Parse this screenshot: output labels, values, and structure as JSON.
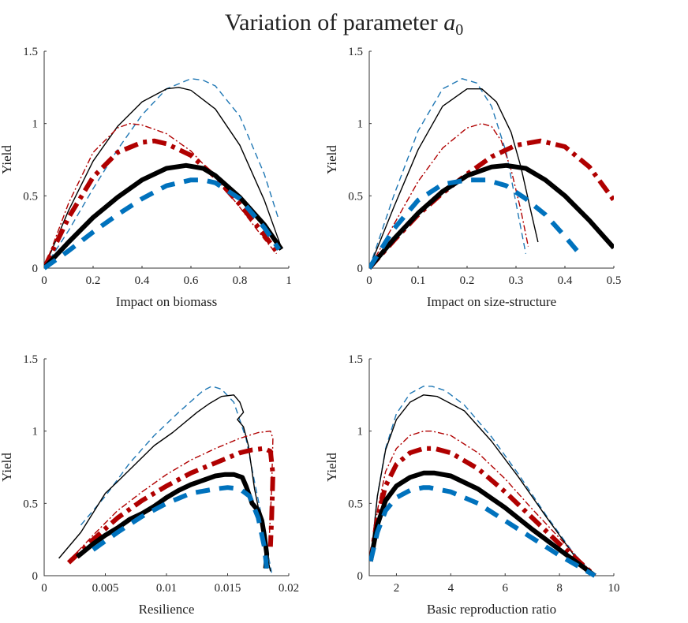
{
  "figure": {
    "title": "Variation of parameter ",
    "title_symbol": "a",
    "title_subscript": "0"
  },
  "chart_data": [
    {
      "type": "line",
      "xlabel": "Impact on biomass",
      "ylabel": "Yield",
      "xlim": [
        0,
        1
      ],
      "ylim": [
        0,
        1.5
      ],
      "xticks": [
        "0",
        "0.2",
        "0.4",
        "0.6",
        "0.8",
        "1"
      ],
      "xtick_values": [
        0,
        0.2,
        0.4,
        0.6,
        0.8,
        1
      ],
      "yticks": [
        "0",
        "0.5",
        "1",
        "1.5"
      ],
      "ytick_values": [
        0,
        0.5,
        1,
        1.5
      ],
      "series": [
        {
          "name": "thin-blue-dashed",
          "color": "#1f77b4",
          "style": "dashed",
          "weight": "thin",
          "x": [
            0,
            0.1,
            0.2,
            0.3,
            0.4,
            0.5,
            0.6,
            0.65,
            0.7,
            0.8,
            0.9,
            0.96
          ],
          "y": [
            0,
            0.26,
            0.55,
            0.82,
            1.06,
            1.24,
            1.31,
            1.3,
            1.26,
            1.05,
            0.65,
            0.33
          ]
        },
        {
          "name": "thin-black-solid",
          "color": "#000000",
          "style": "solid",
          "weight": "thin",
          "x": [
            0,
            0.1,
            0.2,
            0.3,
            0.4,
            0.5,
            0.55,
            0.6,
            0.7,
            0.8,
            0.9,
            0.97
          ],
          "y": [
            0,
            0.4,
            0.74,
            0.98,
            1.15,
            1.24,
            1.25,
            1.23,
            1.1,
            0.85,
            0.47,
            0.14
          ]
        },
        {
          "name": "thin-red-dashdot",
          "color": "#b00000",
          "style": "dashdot",
          "weight": "thin",
          "x": [
            0,
            0.1,
            0.2,
            0.3,
            0.35,
            0.4,
            0.5,
            0.6,
            0.7,
            0.8,
            0.9,
            0.95
          ],
          "y": [
            0,
            0.45,
            0.8,
            0.97,
            1.0,
            0.99,
            0.93,
            0.81,
            0.63,
            0.42,
            0.2,
            0.1
          ]
        },
        {
          "name": "thick-red-dashdot",
          "color": "#b00000",
          "style": "dashdot",
          "weight": "thick",
          "x": [
            0,
            0.1,
            0.2,
            0.3,
            0.4,
            0.45,
            0.5,
            0.6,
            0.7,
            0.8,
            0.9,
            0.96
          ],
          "y": [
            0,
            0.35,
            0.63,
            0.8,
            0.87,
            0.88,
            0.86,
            0.78,
            0.63,
            0.44,
            0.23,
            0.09
          ]
        },
        {
          "name": "thick-black-solid",
          "color": "#000000",
          "style": "solid",
          "weight": "thick",
          "x": [
            0,
            0.1,
            0.2,
            0.3,
            0.4,
            0.5,
            0.58,
            0.65,
            0.7,
            0.8,
            0.9,
            0.97
          ],
          "y": [
            0,
            0.18,
            0.35,
            0.49,
            0.61,
            0.69,
            0.71,
            0.69,
            0.64,
            0.49,
            0.3,
            0.13
          ]
        },
        {
          "name": "thick-blue-dashed",
          "color": "#0072bd",
          "style": "dashed",
          "weight": "thick",
          "x": [
            0,
            0.1,
            0.2,
            0.3,
            0.4,
            0.5,
            0.6,
            0.65,
            0.7,
            0.8,
            0.9,
            0.96
          ],
          "y": [
            0,
            0.12,
            0.25,
            0.37,
            0.48,
            0.57,
            0.61,
            0.61,
            0.59,
            0.48,
            0.28,
            0.13
          ]
        }
      ]
    },
    {
      "type": "line",
      "xlabel": "Impact on size-structure",
      "ylabel": "Yield",
      "xlim": [
        0,
        0.5
      ],
      "ylim": [
        0,
        1.5
      ],
      "xticks": [
        "0",
        "0.1",
        "0.2",
        "0.3",
        "0.4",
        "0.5"
      ],
      "xtick_values": [
        0,
        0.1,
        0.2,
        0.3,
        0.4,
        0.5
      ],
      "yticks": [
        "0",
        "0.5",
        "1",
        "1.5"
      ],
      "ytick_values": [
        0,
        0.5,
        1,
        1.5
      ],
      "series": [
        {
          "name": "thin-blue-dashed",
          "color": "#1f77b4",
          "style": "dashed",
          "weight": "thin",
          "x": [
            0,
            0.05,
            0.1,
            0.15,
            0.19,
            0.22,
            0.25,
            0.28,
            0.3,
            0.32
          ],
          "y": [
            0,
            0.5,
            0.95,
            1.24,
            1.31,
            1.28,
            1.12,
            0.8,
            0.45,
            0.1
          ]
        },
        {
          "name": "thin-black-solid",
          "color": "#000000",
          "style": "solid",
          "weight": "thin",
          "x": [
            0,
            0.05,
            0.1,
            0.15,
            0.2,
            0.23,
            0.26,
            0.29,
            0.31,
            0.33,
            0.345
          ],
          "y": [
            0,
            0.42,
            0.82,
            1.12,
            1.24,
            1.24,
            1.15,
            0.94,
            0.7,
            0.4,
            0.18
          ]
        },
        {
          "name": "thin-red-dashdot",
          "color": "#b00000",
          "style": "dashdot",
          "weight": "thin",
          "x": [
            0,
            0.05,
            0.1,
            0.15,
            0.2,
            0.23,
            0.25,
            0.27,
            0.29,
            0.31,
            0.325
          ],
          "y": [
            0,
            0.3,
            0.6,
            0.83,
            0.97,
            1.0,
            0.98,
            0.88,
            0.68,
            0.4,
            0.15
          ]
        },
        {
          "name": "thick-red-dashdot",
          "color": "#b00000",
          "style": "dashdot",
          "weight": "thick",
          "x": [
            0,
            0.05,
            0.1,
            0.15,
            0.2,
            0.25,
            0.3,
            0.35,
            0.4,
            0.45,
            0.5
          ],
          "y": [
            0,
            0.19,
            0.37,
            0.52,
            0.65,
            0.77,
            0.85,
            0.88,
            0.84,
            0.7,
            0.47
          ]
        },
        {
          "name": "thick-black-solid",
          "color": "#000000",
          "style": "solid",
          "weight": "thick",
          "x": [
            0,
            0.05,
            0.1,
            0.15,
            0.2,
            0.25,
            0.28,
            0.32,
            0.36,
            0.4,
            0.45,
            0.5
          ],
          "y": [
            0,
            0.2,
            0.38,
            0.53,
            0.64,
            0.7,
            0.71,
            0.69,
            0.61,
            0.5,
            0.33,
            0.14
          ]
        },
        {
          "name": "thick-blue-dashed",
          "color": "#0072bd",
          "style": "dashed",
          "weight": "thick",
          "x": [
            0,
            0.05,
            0.1,
            0.15,
            0.2,
            0.24,
            0.28,
            0.32,
            0.36,
            0.4,
            0.43
          ],
          "y": [
            0,
            0.27,
            0.47,
            0.58,
            0.61,
            0.61,
            0.57,
            0.48,
            0.37,
            0.22,
            0.1
          ]
        }
      ]
    },
    {
      "type": "line",
      "xlabel": "Resilience",
      "ylabel": "Yield",
      "xlim": [
        0,
        0.02
      ],
      "ylim": [
        0,
        1.5
      ],
      "xticks": [
        "0",
        "0.005",
        "0.01",
        "0.015",
        "0.02"
      ],
      "xtick_values": [
        0,
        0.005,
        0.01,
        0.015,
        0.02
      ],
      "yticks": [
        "0",
        "0.5",
        "1",
        "1.5"
      ],
      "ytick_values": [
        0,
        0.5,
        1,
        1.5
      ],
      "series": [
        {
          "name": "thin-blue-dashed",
          "color": "#1f77b4",
          "style": "dashed",
          "weight": "thin",
          "x": [
            0.003,
            0.005,
            0.007,
            0.009,
            0.011,
            0.013,
            0.0137,
            0.0145,
            0.0155,
            0.0165,
            0.0172,
            0.0178,
            0.0183,
            0.0186
          ],
          "y": [
            0.35,
            0.55,
            0.78,
            0.97,
            1.13,
            1.28,
            1.31,
            1.29,
            1.2,
            0.95,
            0.65,
            0.4,
            0.15,
            0.02
          ]
        },
        {
          "name": "thin-black-solid",
          "color": "#000000",
          "style": "solid",
          "weight": "thin",
          "x": [
            0.0012,
            0.003,
            0.005,
            0.006,
            0.0078,
            0.009,
            0.0105,
            0.0125,
            0.0135,
            0.0145,
            0.0155,
            0.016,
            0.0163,
            0.0158,
            0.0163,
            0.0167,
            0.0172,
            0.0178,
            0.0182,
            0.0185
          ],
          "y": [
            0.12,
            0.3,
            0.57,
            0.65,
            0.8,
            0.9,
            0.99,
            1.13,
            1.19,
            1.24,
            1.25,
            1.2,
            1.13,
            1.08,
            1.03,
            0.9,
            0.6,
            0.35,
            0.15,
            0.03
          ]
        },
        {
          "name": "thin-red-dashdot",
          "color": "#b00000",
          "style": "dashdot",
          "weight": "thin",
          "x": [
            0.002,
            0.004,
            0.006,
            0.008,
            0.01,
            0.012,
            0.014,
            0.016,
            0.0175,
            0.0185,
            0.0187,
            0.0186,
            0.0184
          ],
          "y": [
            0.1,
            0.28,
            0.45,
            0.58,
            0.7,
            0.8,
            0.88,
            0.95,
            0.99,
            1.0,
            0.95,
            0.6,
            0.25
          ]
        },
        {
          "name": "thick-red-dashdot",
          "color": "#b00000",
          "style": "dashdot",
          "weight": "thick",
          "x": [
            0.002,
            0.004,
            0.006,
            0.008,
            0.01,
            0.012,
            0.014,
            0.016,
            0.017,
            0.018,
            0.0185,
            0.0187,
            0.0186,
            0.0185
          ],
          "y": [
            0.09,
            0.25,
            0.4,
            0.52,
            0.62,
            0.71,
            0.78,
            0.85,
            0.87,
            0.88,
            0.86,
            0.7,
            0.4,
            0.2
          ]
        },
        {
          "name": "thick-black-solid",
          "color": "#000000",
          "style": "solid",
          "weight": "thick",
          "x": [
            0.0027,
            0.004,
            0.005,
            0.006,
            0.007,
            0.008,
            0.009,
            0.01,
            0.011,
            0.012,
            0.013,
            0.014,
            0.0148,
            0.0155,
            0.0162,
            0.0165,
            0.0168,
            0.017,
            0.0175,
            0.0178,
            0.018,
            0.0182,
            0.0181
          ],
          "y": [
            0.13,
            0.22,
            0.28,
            0.33,
            0.39,
            0.43,
            0.48,
            0.54,
            0.59,
            0.63,
            0.66,
            0.69,
            0.7,
            0.7,
            0.68,
            0.62,
            0.55,
            0.5,
            0.45,
            0.38,
            0.28,
            0.15,
            0.05
          ]
        },
        {
          "name": "thick-blue-dashed",
          "color": "#0072bd",
          "style": "dashed",
          "weight": "thick",
          "x": [
            0.004,
            0.006,
            0.008,
            0.01,
            0.012,
            0.014,
            0.015,
            0.016,
            0.0168,
            0.0175,
            0.018,
            0.0182
          ],
          "y": [
            0.18,
            0.3,
            0.41,
            0.5,
            0.57,
            0.6,
            0.61,
            0.6,
            0.55,
            0.4,
            0.2,
            0.05
          ]
        }
      ]
    },
    {
      "type": "line",
      "xlabel": "Basic reproduction ratio",
      "ylabel": "Yield",
      "xlim": [
        1,
        10
      ],
      "ylim": [
        0,
        1.5
      ],
      "xticks": [
        "2",
        "4",
        "6",
        "8",
        "10"
      ],
      "xtick_values": [
        2,
        4,
        6,
        8,
        10
      ],
      "yticks": [
        "0",
        "0.5",
        "1",
        "1.5"
      ],
      "ytick_values": [
        0,
        0.5,
        1,
        1.5
      ],
      "series": [
        {
          "name": "thin-blue-dashed",
          "color": "#1f77b4",
          "style": "dashed",
          "weight": "thin",
          "x": [
            1.05,
            1.3,
            1.6,
            2.0,
            2.5,
            3.0,
            3.3,
            3.8,
            4.5,
            5.5,
            6.5,
            7.5,
            8.5,
            9.3
          ],
          "y": [
            0.1,
            0.55,
            0.88,
            1.12,
            1.26,
            1.31,
            1.31,
            1.28,
            1.18,
            0.96,
            0.7,
            0.42,
            0.16,
            0.0
          ]
        },
        {
          "name": "thin-black-solid",
          "color": "#000000",
          "style": "solid",
          "weight": "thin",
          "x": [
            1.05,
            1.3,
            1.6,
            2.0,
            2.5,
            3.0,
            3.5,
            4.5,
            5.5,
            6.5,
            7.5,
            8.5,
            9.3
          ],
          "y": [
            0.1,
            0.55,
            0.87,
            1.08,
            1.2,
            1.25,
            1.24,
            1.14,
            0.93,
            0.68,
            0.41,
            0.15,
            0.0
          ]
        },
        {
          "name": "thin-red-dashdot",
          "color": "#b00000",
          "style": "dashdot",
          "weight": "thin",
          "x": [
            1.05,
            1.3,
            1.6,
            2.0,
            2.5,
            3.0,
            3.3,
            4.0,
            5.0,
            6.0,
            7.0,
            8.0,
            9.3
          ],
          "y": [
            0.1,
            0.45,
            0.72,
            0.88,
            0.97,
            1.0,
            1.0,
            0.97,
            0.85,
            0.67,
            0.46,
            0.26,
            0.0
          ]
        },
        {
          "name": "thick-red-dashdot",
          "color": "#b00000",
          "style": "dashdot",
          "weight": "thick",
          "x": [
            1.05,
            1.3,
            1.6,
            2.0,
            2.5,
            3.0,
            3.4,
            4.0,
            5.0,
            6.0,
            7.0,
            8.0,
            9.3
          ],
          "y": [
            0.1,
            0.4,
            0.62,
            0.77,
            0.85,
            0.88,
            0.88,
            0.85,
            0.74,
            0.58,
            0.4,
            0.22,
            0.0
          ]
        },
        {
          "name": "thick-black-solid",
          "color": "#000000",
          "style": "solid",
          "weight": "thick",
          "x": [
            1.05,
            1.3,
            1.6,
            2.0,
            2.5,
            3.0,
            3.4,
            4.0,
            5.0,
            6.0,
            7.0,
            8.0,
            9.3
          ],
          "y": [
            0.1,
            0.35,
            0.52,
            0.62,
            0.68,
            0.71,
            0.71,
            0.69,
            0.6,
            0.47,
            0.32,
            0.18,
            0.0
          ]
        },
        {
          "name": "thick-blue-dashed",
          "color": "#0072bd",
          "style": "dashed",
          "weight": "thick",
          "x": [
            1.05,
            1.3,
            1.6,
            2.0,
            2.5,
            3.0,
            3.2,
            4.0,
            5.0,
            6.0,
            7.0,
            8.0,
            9.3
          ],
          "y": [
            0.1,
            0.3,
            0.45,
            0.54,
            0.59,
            0.61,
            0.61,
            0.58,
            0.5,
            0.38,
            0.26,
            0.14,
            0.0
          ]
        }
      ]
    }
  ]
}
